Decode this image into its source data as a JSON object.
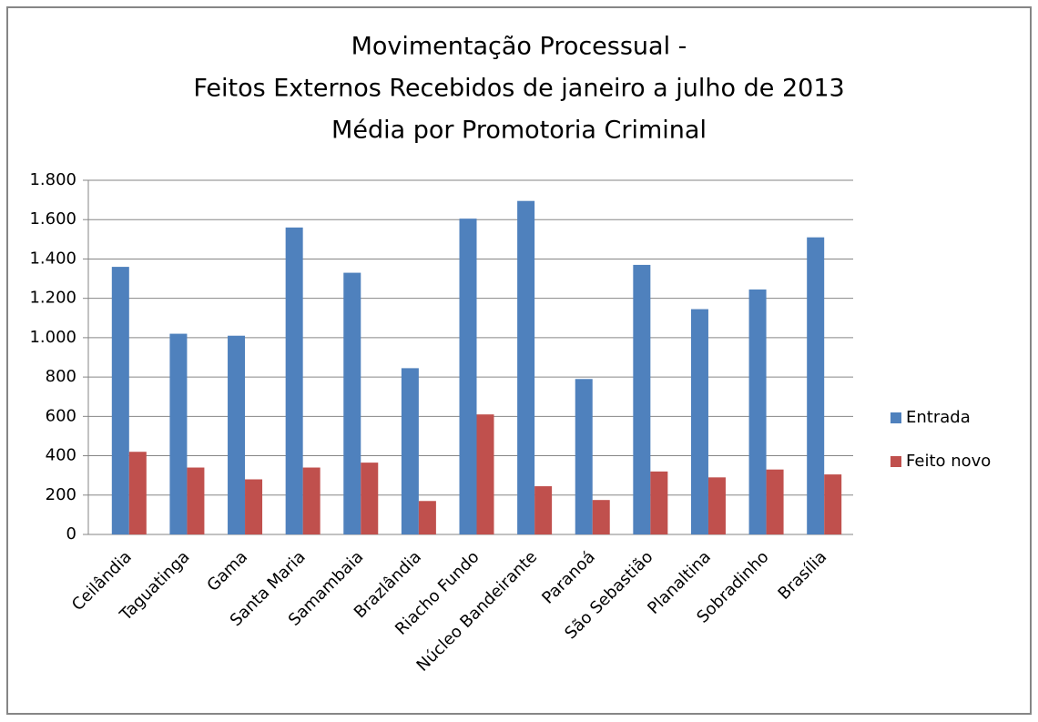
{
  "chart_data": {
    "type": "bar",
    "title": [
      "Movimentação Processual -",
      "Feitos Externos Recebidos de janeiro a julho de 2013",
      "Média por Promotoria Criminal"
    ],
    "categories": [
      "Ceilândia",
      "Taguatinga",
      "Gama",
      "Santa Maria",
      "Samambaia",
      "Brazlândia",
      "Riacho Fundo",
      "Núcleo Bandeirante",
      "Paranoá",
      "São Sebastião",
      "Planaltina",
      "Sobradinho",
      "Brasília"
    ],
    "series": [
      {
        "name": "Entrada",
        "color": "#4f81bd",
        "values": [
          1360,
          1020,
          1010,
          1560,
          1330,
          845,
          1605,
          1695,
          790,
          1370,
          1145,
          1245,
          1510
        ]
      },
      {
        "name": "Feito novo",
        "color": "#c0504d",
        "values": [
          420,
          340,
          280,
          340,
          365,
          170,
          610,
          245,
          175,
          320,
          290,
          330,
          305
        ]
      }
    ],
    "ylim": [
      0,
      1800
    ],
    "yticks": [
      0,
      200,
      400,
      600,
      800,
      {
        "value": 1000,
        "label": "1.000"
      },
      {
        "value": 1200,
        "label": "1.200"
      },
      {
        "value": 1400,
        "label": "1.400"
      },
      {
        "value": 1600,
        "label": "1.600"
      },
      {
        "value": 1800,
        "label": "1.800"
      }
    ],
    "grid": true,
    "legend": "right"
  }
}
